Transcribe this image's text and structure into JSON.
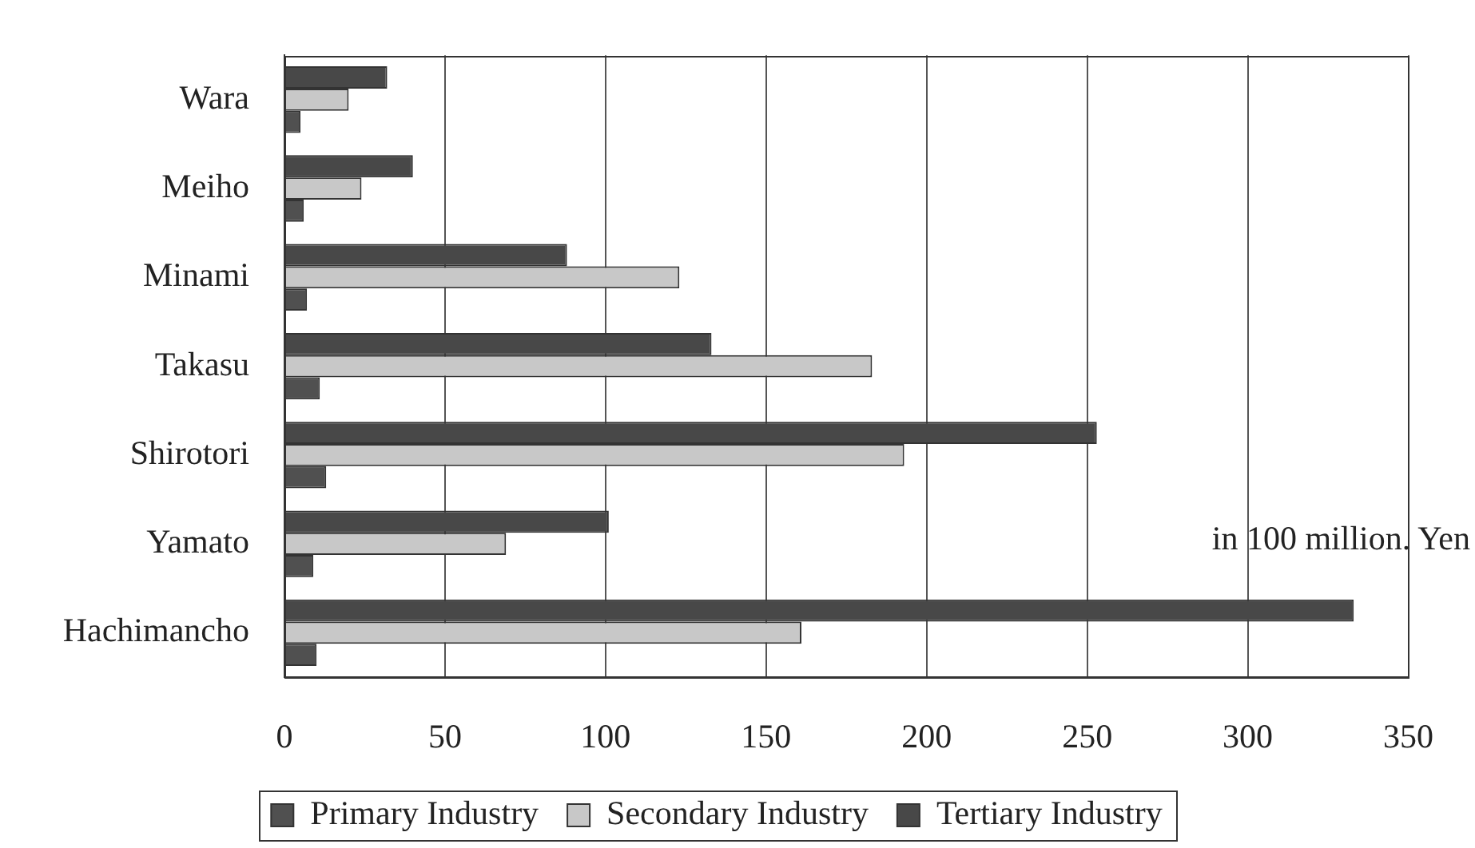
{
  "chart_data": {
    "type": "bar",
    "orientation": "horizontal",
    "categories": [
      "Wara",
      "Meiho",
      "Minami",
      "Takasu",
      "Shirotori",
      "Yamato",
      "Hachimancho"
    ],
    "series": [
      {
        "name": "Primary Industry",
        "color": "#505050",
        "values": [
          5,
          6,
          7,
          11,
          13,
          9,
          10
        ]
      },
      {
        "name": "Secondary Industry",
        "color": "#c8c8c8",
        "values": [
          20,
          24,
          123,
          183,
          193,
          69,
          161
        ]
      },
      {
        "name": "Tertiary Industry",
        "color": "#484848",
        "values": [
          32,
          40,
          88,
          133,
          253,
          101,
          333
        ]
      }
    ],
    "xlim": [
      0,
      350
    ],
    "xticks": [
      0,
      50,
      100,
      150,
      200,
      250,
      300,
      350
    ],
    "grid": "x",
    "legend": "bottom",
    "annotations": [
      "in 100 million. Yen"
    ]
  }
}
